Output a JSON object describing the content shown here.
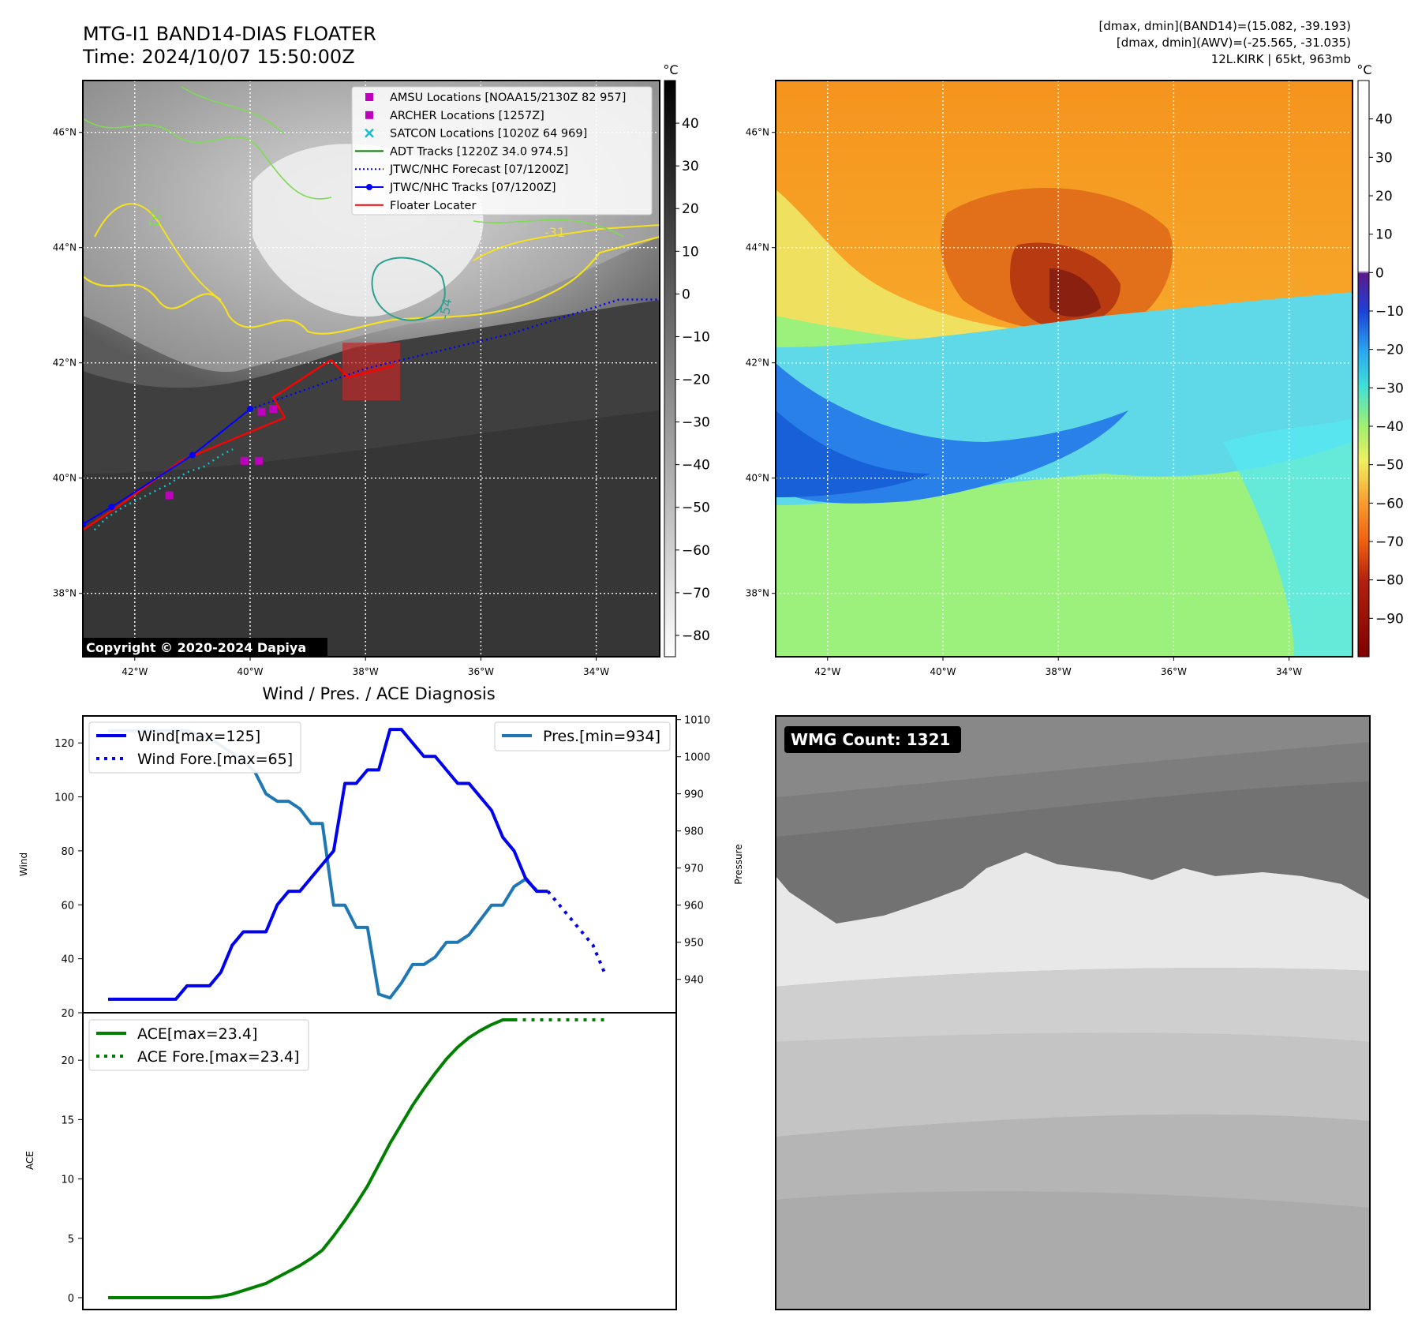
{
  "header": {
    "title_line1": "MTG-I1 BAND14-DIAS FLOATER",
    "title_line2": "Time: 2024/10/07 15:50:00Z",
    "info_line1": "[dmax, dmin](BAND14)=(15.082, -39.193)",
    "info_line2": "[dmax, dmin](AWV)=(-25.565, -31.035)",
    "info_line3": "12L.KIRK | 65kt, 963mb"
  },
  "map": {
    "lon_ticks": [
      "42°W",
      "40°W",
      "38°W",
      "36°W",
      "34°W"
    ],
    "lat_ticks": [
      "46°N",
      "44°N",
      "42°N",
      "40°N",
      "38°N"
    ],
    "lon_values": [
      -42,
      -40,
      -38,
      -36,
      -34
    ],
    "lat_values": [
      46,
      44,
      42,
      40,
      38
    ],
    "lon_range": [
      -42.9,
      -32.9
    ],
    "lat_range": [
      36.9,
      46.9
    ],
    "copyright": "Copyright © 2020-2024 Dapiya",
    "contour_labels": [
      "-31",
      "-54",
      "-31"
    ],
    "colorbar_unit": "°C",
    "gray_colorbar_ticks": [
      "40",
      "30",
      "20",
      "10",
      "0",
      "−10",
      "−20",
      "−30",
      "−40",
      "−50",
      "−60",
      "−70",
      "−80"
    ],
    "gray_colorbar_values": [
      40,
      30,
      20,
      10,
      0,
      -10,
      -20,
      -30,
      -40,
      -50,
      -60,
      -70,
      -80
    ],
    "gray_colorbar_range": [
      -85,
      50
    ],
    "color_colorbar_ticks": [
      "40",
      "30",
      "20",
      "10",
      "0",
      "−10",
      "−20",
      "−30",
      "−40",
      "−50",
      "−60",
      "−70",
      "−80",
      "−90"
    ],
    "color_colorbar_values": [
      40,
      30,
      20,
      10,
      0,
      -10,
      -20,
      -30,
      -40,
      -50,
      -60,
      -70,
      -80,
      -90
    ],
    "color_colorbar_range": [
      -100,
      50
    ],
    "legend": [
      {
        "label": "AMSU Locations [NOAA15/2130Z 82 957]",
        "marker": "square",
        "color": "#bf00bf"
      },
      {
        "label": "ARCHER Locations [1257Z]",
        "marker": "square",
        "color": "#bf00bf"
      },
      {
        "label": "SATCON Locations [1020Z 64 969]",
        "marker": "x",
        "color": "#17becf"
      },
      {
        "label": "ADT Tracks [1220Z 34.0 974.5]",
        "marker": "line",
        "color": "#008000"
      },
      {
        "label": "JTWC/NHC Forecast [07/1200Z]",
        "marker": "dotted",
        "color": "#0000ff"
      },
      {
        "label": "JTWC/NHC Tracks [07/1200Z]",
        "marker": "line-dot",
        "color": "#0000ff"
      },
      {
        "label": "Floater Locater",
        "marker": "line",
        "color": "#ff0000"
      }
    ],
    "tracks": {
      "jtwc": [
        [
          -42.9,
          39.2
        ],
        [
          -42.4,
          39.5
        ],
        [
          -41.0,
          40.4
        ],
        [
          -40.0,
          41.2
        ]
      ],
      "jtwc_forecast": [
        [
          -40.0,
          41.2
        ],
        [
          -38.0,
          41.9
        ],
        [
          -35.5,
          42.5
        ],
        [
          -33.6,
          43.1
        ],
        [
          -32.9,
          43.1
        ]
      ],
      "floater": [
        [
          -42.9,
          39.1
        ],
        [
          -42.3,
          39.5
        ],
        [
          -41.2,
          40.3
        ],
        [
          -39.4,
          41.05
        ],
        [
          -39.6,
          41.4
        ],
        [
          -38.6,
          42.05
        ],
        [
          -38.3,
          41.75
        ],
        [
          -37.5,
          41.95
        ]
      ],
      "satcon": [
        [
          -42.7,
          39.1
        ],
        [
          -42.5,
          39.3
        ],
        [
          -42.2,
          39.5
        ],
        [
          -41.8,
          39.7
        ],
        [
          -41.4,
          39.9
        ],
        [
          -41.1,
          40.1
        ],
        [
          -40.8,
          40.2
        ],
        [
          -40.5,
          40.4
        ],
        [
          -40.3,
          40.5
        ]
      ],
      "amsu_archer": [
        [
          -41.4,
          39.7
        ],
        [
          -40.1,
          40.3
        ],
        [
          -39.85,
          40.3
        ],
        [
          -39.8,
          41.15
        ],
        [
          -39.6,
          41.2
        ]
      ],
      "floater_box": [
        -38.4,
        41.35,
        -37.4,
        42.35
      ]
    }
  },
  "diagnosis": {
    "title": "Wind / Pres. / ACE Diagnosis",
    "wind_ylabel": "Wind",
    "pres_ylabel": "Pressure",
    "ace_ylabel": "ACE",
    "wind_legend": "Wind[max=125]",
    "wind_fore_legend": "Wind Fore.[max=65]",
    "pres_legend": "Pres.[min=934]",
    "ace_legend": "ACE[max=23.4]",
    "ace_fore_legend": "ACE Fore.[max=23.4]",
    "wind_ticks": [
      "120",
      "100",
      "80",
      "60",
      "40",
      "20"
    ],
    "pres_ticks": [
      "1010",
      "1000",
      "990",
      "980",
      "970",
      "960",
      "950",
      "940"
    ],
    "ace_ticks": [
      "20",
      "15",
      "10",
      "5",
      "0"
    ],
    "colors": {
      "wind": "#0000ee",
      "pres": "#1f77b4",
      "ace": "#008000"
    }
  },
  "wmg": {
    "badge": "WMG Count: 1321"
  },
  "chart_data": [
    {
      "type": "line",
      "title": "Wind / Pres. / ACE Diagnosis",
      "ylabel": "Wind",
      "ylim": [
        20,
        130
      ],
      "series": [
        {
          "name": "Wind[max=125]",
          "values": [
            25,
            25,
            25,
            25,
            25,
            25,
            25,
            30,
            30,
            30,
            35,
            45,
            50,
            50,
            50,
            60,
            65,
            65,
            70,
            75,
            80,
            105,
            105,
            110,
            110,
            125,
            125,
            120,
            115,
            115,
            110,
            105,
            105,
            100,
            95,
            85,
            80,
            70,
            65,
            65
          ]
        },
        {
          "name": "Wind Fore.[max=65]",
          "x_start": 39,
          "values": [
            65,
            60,
            55,
            50,
            45,
            35
          ]
        }
      ]
    },
    {
      "type": "line",
      "ylabel": "Pressure",
      "ylim": [
        931,
        1011
      ],
      "series": [
        {
          "name": "Pres.[min=934]",
          "values": [
            1007,
            1007,
            1007,
            1007,
            1007,
            1007,
            1007,
            1007,
            1006,
            1005,
            1003,
            1001,
            999,
            996,
            990,
            988,
            988,
            986,
            982,
            982,
            960,
            960,
            954,
            954,
            936,
            935,
            939,
            944,
            944,
            946,
            950,
            950,
            952,
            956,
            960,
            960,
            965,
            967,
            964
          ]
        }
      ]
    },
    {
      "type": "line",
      "ylabel": "ACE",
      "ylim": [
        -1,
        24
      ],
      "series": [
        {
          "name": "ACE[max=23.4]",
          "values": [
            0,
            0,
            0,
            0,
            0,
            0,
            0,
            0,
            0,
            0,
            0.1,
            0.3,
            0.6,
            0.9,
            1.2,
            1.7,
            2.2,
            2.7,
            3.3,
            4.0,
            5.2,
            6.5,
            7.9,
            9.4,
            11.2,
            13.0,
            14.6,
            16.2,
            17.6,
            18.9,
            20.1,
            21.1,
            21.9,
            22.5,
            23.0,
            23.4,
            23.4
          ]
        },
        {
          "name": "ACE Fore.[max=23.4]",
          "x_start": 36,
          "values": [
            23.4,
            23.4,
            23.4,
            23.4,
            23.4,
            23.4,
            23.4,
            23.4,
            23.4
          ]
        }
      ]
    }
  ]
}
